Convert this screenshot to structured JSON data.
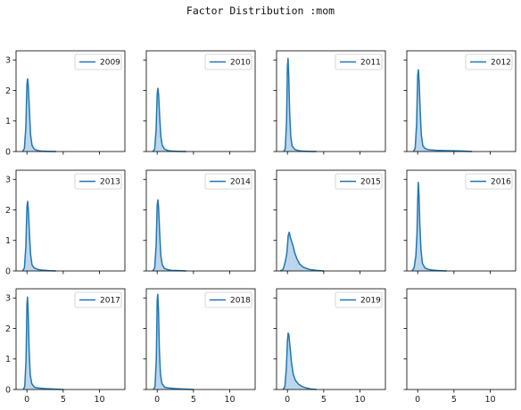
{
  "figure": {
    "title": "Factor Distribution :mom"
  },
  "chart_data": {
    "type": "area",
    "title": "Factor Distribution :mom",
    "layout": {
      "rows": 3,
      "cols": 4
    },
    "shared_x": {
      "xlim": [
        -1.5,
        13.5
      ],
      "ticks": [
        0,
        5,
        10
      ],
      "tick_labels": [
        "0",
        "5",
        "10"
      ]
    },
    "shared_y": {
      "ylim": [
        0,
        3.3
      ],
      "ticks": [
        0,
        1,
        2,
        3
      ],
      "tick_labels": [
        "0",
        "1",
        "2",
        "3"
      ]
    },
    "legend_position": "top-right",
    "line_color": "#1f77b4",
    "fill_color": "#a6c8e6",
    "panels": [
      {
        "label": "2009",
        "x": [
          -0.6,
          -0.35,
          -0.15,
          0.0,
          0.1,
          0.2,
          0.35,
          0.5,
          0.7,
          1.0,
          1.5,
          2.0,
          3.0,
          4.0
        ],
        "y": [
          0,
          0.1,
          0.8,
          2.2,
          2.38,
          2.1,
          1.3,
          0.55,
          0.2,
          0.08,
          0.03,
          0.015,
          0.005,
          0
        ]
      },
      {
        "label": "2010",
        "x": [
          -0.6,
          -0.35,
          -0.15,
          0.0,
          0.1,
          0.2,
          0.35,
          0.5,
          0.7,
          1.0,
          1.5,
          2.0,
          3.0,
          4.0
        ],
        "y": [
          0,
          0.08,
          0.7,
          1.9,
          2.07,
          1.85,
          1.1,
          0.5,
          0.2,
          0.08,
          0.03,
          0.015,
          0.005,
          0
        ]
      },
      {
        "label": "2011",
        "x": [
          -0.5,
          -0.3,
          -0.12,
          0.0,
          0.08,
          0.18,
          0.3,
          0.45,
          0.65,
          1.0,
          1.5,
          2.0,
          3.0,
          4.0
        ],
        "y": [
          0,
          0.1,
          1.0,
          2.8,
          3.05,
          2.5,
          1.3,
          0.5,
          0.18,
          0.07,
          0.03,
          0.015,
          0.005,
          0
        ]
      },
      {
        "label": "2012",
        "x": [
          -0.6,
          -0.35,
          -0.15,
          0.0,
          0.1,
          0.2,
          0.35,
          0.5,
          0.7,
          1.0,
          1.5,
          2.5,
          4.0,
          6.0,
          7.5
        ],
        "y": [
          0,
          0.1,
          0.9,
          2.5,
          2.68,
          2.3,
          1.3,
          0.55,
          0.2,
          0.1,
          0.06,
          0.04,
          0.03,
          0.02,
          0
        ]
      },
      {
        "label": "2013",
        "x": [
          -0.6,
          -0.35,
          -0.15,
          0.0,
          0.1,
          0.2,
          0.35,
          0.5,
          0.7,
          1.0,
          1.5,
          2.0,
          3.0,
          4.0
        ],
        "y": [
          0,
          0.1,
          0.8,
          2.1,
          2.28,
          2.0,
          1.2,
          0.55,
          0.2,
          0.1,
          0.05,
          0.03,
          0.01,
          0
        ]
      },
      {
        "label": "2014",
        "x": [
          -0.6,
          -0.35,
          -0.15,
          0.0,
          0.1,
          0.2,
          0.35,
          0.5,
          0.7,
          1.0,
          1.5,
          2.0,
          3.0,
          4.0
        ],
        "y": [
          0,
          0.1,
          0.8,
          2.15,
          2.33,
          2.05,
          1.2,
          0.5,
          0.2,
          0.08,
          0.04,
          0.02,
          0.01,
          0
        ]
      },
      {
        "label": "2015",
        "x": [
          -1.0,
          -0.6,
          -0.3,
          -0.1,
          0.0,
          0.1,
          0.25,
          0.4,
          0.6,
          0.8,
          1.0,
          1.3,
          1.7,
          2.2,
          3.0,
          4.0,
          5.0
        ],
        "y": [
          0,
          0.05,
          0.3,
          0.55,
          0.8,
          1.15,
          1.27,
          1.1,
          0.95,
          0.8,
          0.6,
          0.4,
          0.22,
          0.12,
          0.05,
          0.02,
          0
        ]
      },
      {
        "label": "2016",
        "x": [
          -0.8,
          -0.5,
          -0.25,
          -0.1,
          0.0,
          0.08,
          0.18,
          0.3,
          0.45,
          0.65,
          1.0,
          1.5,
          2.0,
          3.0,
          4.0
        ],
        "y": [
          0,
          0.1,
          0.5,
          1.2,
          2.3,
          2.9,
          2.5,
          1.5,
          0.7,
          0.25,
          0.1,
          0.05,
          0.03,
          0.01,
          0
        ]
      },
      {
        "label": "2017",
        "x": [
          -0.5,
          -0.3,
          -0.12,
          0.0,
          0.08,
          0.18,
          0.3,
          0.45,
          0.65,
          1.0,
          1.5,
          2.5,
          4.0,
          5.0
        ],
        "y": [
          0,
          0.1,
          1.0,
          2.8,
          3.03,
          2.5,
          1.3,
          0.5,
          0.2,
          0.08,
          0.05,
          0.03,
          0.01,
          0
        ]
      },
      {
        "label": "2018",
        "x": [
          -0.5,
          -0.3,
          -0.12,
          0.0,
          0.08,
          0.18,
          0.3,
          0.45,
          0.65,
          1.0,
          1.5,
          2.5,
          4.0,
          5.0
        ],
        "y": [
          0,
          0.1,
          1.0,
          2.9,
          3.12,
          2.6,
          1.3,
          0.5,
          0.2,
          0.08,
          0.05,
          0.03,
          0.01,
          0
        ]
      },
      {
        "label": "2019",
        "x": [
          -0.6,
          -0.35,
          -0.15,
          0.0,
          0.1,
          0.2,
          0.35,
          0.55,
          0.8,
          1.1,
          1.5,
          2.0,
          2.6,
          3.2,
          4.0
        ],
        "y": [
          0,
          0.1,
          0.7,
          1.6,
          1.85,
          1.78,
          1.4,
          0.9,
          0.5,
          0.3,
          0.18,
          0.1,
          0.05,
          0.02,
          0
        ]
      },
      {
        "label": "",
        "x": [],
        "y": []
      }
    ]
  }
}
